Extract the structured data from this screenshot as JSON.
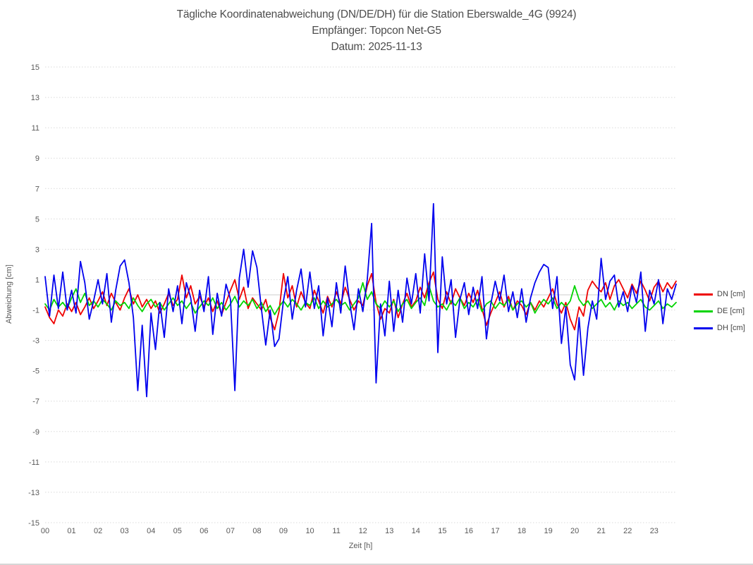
{
  "chart_data": {
    "type": "line",
    "title_lines": [
      "Tägliche Koordinatenabweichung (DN/DE/DH) für die Station Eberswalde_4G (9924)",
      "Empfänger: Topcon Net-G5",
      "Datum: 2025-11-13"
    ],
    "xlabel": "Zeit [h]",
    "ylabel": "Abweichung [cm]",
    "ylim": [
      -15,
      15
    ],
    "y_ticks": [
      15,
      13,
      11,
      9,
      7,
      5,
      3,
      1,
      -1,
      -3,
      -5,
      -7,
      -9,
      -11,
      -13,
      -15
    ],
    "x_ticks": [
      "00",
      "01",
      "02",
      "03",
      "04",
      "05",
      "06",
      "07",
      "08",
      "09",
      "10",
      "11",
      "12",
      "13",
      "14",
      "15",
      "16",
      "17",
      "18",
      "19",
      "20",
      "21",
      "22",
      "23"
    ],
    "xlim_hours": [
      0,
      23.83
    ],
    "x_start_hour": 0,
    "x_interval_hours": 0.1667,
    "grid": "dotted horizontal gridlines at each odd value, solid light line at 0, no vertical gridlines, no frame",
    "legend_position": "right-center",
    "colors": {
      "title_text": "#4d4d4d",
      "tick_text": "#595959",
      "grid": "#d9d9d9",
      "zero_line": "#cccccc",
      "background": "#ffffff",
      "bottom_border": "#d6d6d6"
    },
    "series": [
      {
        "name": "DN [cm]",
        "color": "#ee0000",
        "values": [
          -0.8,
          -1.5,
          -1.9,
          -1.0,
          -1.4,
          -0.6,
          -1.1,
          -0.5,
          -1.3,
          -0.8,
          -0.2,
          -0.9,
          -0.4,
          0.2,
          -0.7,
          0.1,
          -0.5,
          -1.0,
          -0.2,
          0.4,
          -0.6,
          0.0,
          -0.8,
          -0.3,
          -0.9,
          -0.4,
          -1.2,
          -0.6,
          0.1,
          -0.7,
          -0.3,
          1.3,
          -0.2,
          0.6,
          -0.6,
          -0.1,
          -0.8,
          -0.2,
          -1.1,
          -0.4,
          -1.3,
          -0.5,
          0.3,
          1.0,
          -0.3,
          0.5,
          -0.9,
          -0.2,
          -0.6,
          -1.0,
          -0.3,
          -1.5,
          -2.3,
          -1.1,
          1.4,
          -0.2,
          0.6,
          -0.8,
          0.2,
          -0.5,
          -0.9,
          0.3,
          -0.4,
          -1.2,
          -0.1,
          -0.8,
          0.2,
          -0.6,
          0.5,
          -0.3,
          -1.0,
          -0.4,
          -0.7,
          0.6,
          1.4,
          -0.5,
          -1.6,
          -0.9,
          -1.2,
          -0.3,
          -1.5,
          -0.6,
          0.1,
          -0.8,
          -0.4,
          0.5,
          -0.2,
          0.8,
          1.5,
          -0.3,
          -0.9,
          0.2,
          -0.6,
          0.4,
          -0.2,
          -0.7,
          0.1,
          -0.5,
          0.3,
          -0.9,
          -2.0,
          -1.2,
          -0.5,
          0.2,
          -0.8,
          -0.1,
          -1.0,
          -0.4,
          -0.7,
          -1.3,
          -0.5,
          -1.0,
          -0.4,
          -0.8,
          -0.2,
          0.4,
          -0.6,
          -1.2,
          -0.5,
          -1.6,
          -2.3,
          -0.8,
          -1.4,
          0.3,
          0.9,
          0.5,
          0.2,
          0.8,
          -0.3,
          0.6,
          1.0,
          0.4,
          -0.2,
          0.7,
          0.1,
          0.9,
          0.3,
          -0.4,
          0.5,
          0.9,
          0.2,
          0.8,
          0.4,
          0.9
        ]
      },
      {
        "name": "DE [cm]",
        "color": "#00d400",
        "values": [
          -0.6,
          -1.0,
          -0.3,
          -0.8,
          -0.5,
          -0.9,
          -0.2,
          0.4,
          -0.5,
          0.1,
          -0.7,
          -0.4,
          -0.8,
          -0.3,
          -0.6,
          -1.0,
          -0.4,
          -0.7,
          -0.5,
          -0.9,
          -0.2,
          -0.7,
          -1.1,
          -0.6,
          -0.3,
          -0.8,
          -0.5,
          -1.0,
          -0.6,
          -0.2,
          -0.7,
          -0.4,
          -0.9,
          -0.5,
          -1.2,
          -0.8,
          -0.4,
          -0.7,
          -0.2,
          -0.9,
          -0.5,
          -1.0,
          -0.6,
          -0.1,
          -0.8,
          -0.4,
          -0.7,
          -0.3,
          -0.9,
          -0.5,
          -1.1,
          -0.7,
          -1.3,
          -0.8,
          -0.4,
          -0.8,
          -0.3,
          -0.6,
          -1.0,
          -0.5,
          -0.7,
          -0.2,
          -0.9,
          -0.4,
          -0.8,
          -0.6,
          -0.3,
          -0.7,
          -0.5,
          -1.0,
          -0.6,
          -0.2,
          0.8,
          -0.3,
          0.2,
          -0.6,
          -0.9,
          -0.4,
          -0.8,
          -0.4,
          -1.1,
          -0.6,
          -0.3,
          -0.9,
          -0.5,
          -0.2,
          -0.7,
          0.6,
          -0.4,
          -0.8,
          -0.6,
          -1.0,
          -0.4,
          -0.7,
          -0.2,
          -0.9,
          -0.5,
          -0.8,
          -0.3,
          -1.1,
          -0.6,
          -0.4,
          -0.9,
          -0.5,
          -0.7,
          -0.3,
          -1.0,
          -0.6,
          -0.4,
          -0.8,
          -0.5,
          -1.2,
          -0.7,
          -0.3,
          -0.6,
          -0.2,
          -0.9,
          -0.5,
          -0.8,
          -0.4,
          0.6,
          -0.3,
          -0.7,
          -0.4,
          -0.9,
          -0.6,
          -0.3,
          -0.8,
          -0.5,
          -1.0,
          -0.4,
          -0.7,
          -0.5,
          -0.9,
          -0.6,
          -0.3,
          -0.8,
          -1.0,
          -0.7,
          -0.4,
          -0.9,
          -0.6,
          -0.8,
          -0.5
        ]
      },
      {
        "name": "DH [cm]",
        "color": "#0000ee",
        "values": [
          1.2,
          -1.4,
          1.3,
          -0.9,
          1.5,
          -1.0,
          0.3,
          -1.2,
          2.2,
          0.8,
          -1.6,
          -0.4,
          1.0,
          -0.6,
          1.4,
          -1.8,
          0.3,
          1.9,
          2.3,
          0.8,
          -1.5,
          -6.3,
          -2.0,
          -6.7,
          -1.2,
          -3.6,
          -0.5,
          -2.8,
          0.4,
          -1.1,
          0.6,
          -1.9,
          0.8,
          -0.2,
          -2.4,
          0.3,
          -1.1,
          1.2,
          -2.6,
          0.1,
          -1.4,
          0.7,
          -0.3,
          -6.3,
          1.1,
          3.0,
          0.5,
          2.9,
          1.8,
          -0.9,
          -3.3,
          -1.0,
          -3.4,
          -2.9,
          -0.4,
          1.2,
          -1.6,
          0.3,
          1.7,
          -0.8,
          1.5,
          -0.9,
          0.6,
          -2.7,
          -0.2,
          -2.1,
          0.8,
          -1.2,
          1.9,
          -0.5,
          -2.3,
          0.4,
          -1.1,
          1.0,
          4.7,
          -5.8,
          -0.6,
          -2.7,
          0.9,
          -2.4,
          0.3,
          -1.8,
          1.1,
          -0.6,
          1.4,
          -1.2,
          2.7,
          -0.4,
          6.0,
          -3.8,
          2.5,
          -0.6,
          1.0,
          -2.8,
          -0.3,
          0.8,
          -1.3,
          0.5,
          -0.9,
          1.2,
          -2.9,
          -0.6,
          0.9,
          -0.4,
          1.3,
          -1.1,
          0.2,
          -1.5,
          0.4,
          -1.8,
          -0.2,
          0.8,
          1.5,
          2.0,
          1.8,
          -0.9,
          1.2,
          -3.2,
          -0.8,
          -4.6,
          -5.6,
          -1.5,
          -5.3,
          -2.2,
          -0.4,
          -1.6,
          2.4,
          -0.3,
          0.9,
          1.3,
          -0.8,
          0.2,
          -1.1,
          0.6,
          -0.5,
          1.5,
          -2.4,
          0.3,
          -0.6,
          1.0,
          -1.9,
          0.4,
          -0.3,
          0.7
        ]
      }
    ]
  }
}
